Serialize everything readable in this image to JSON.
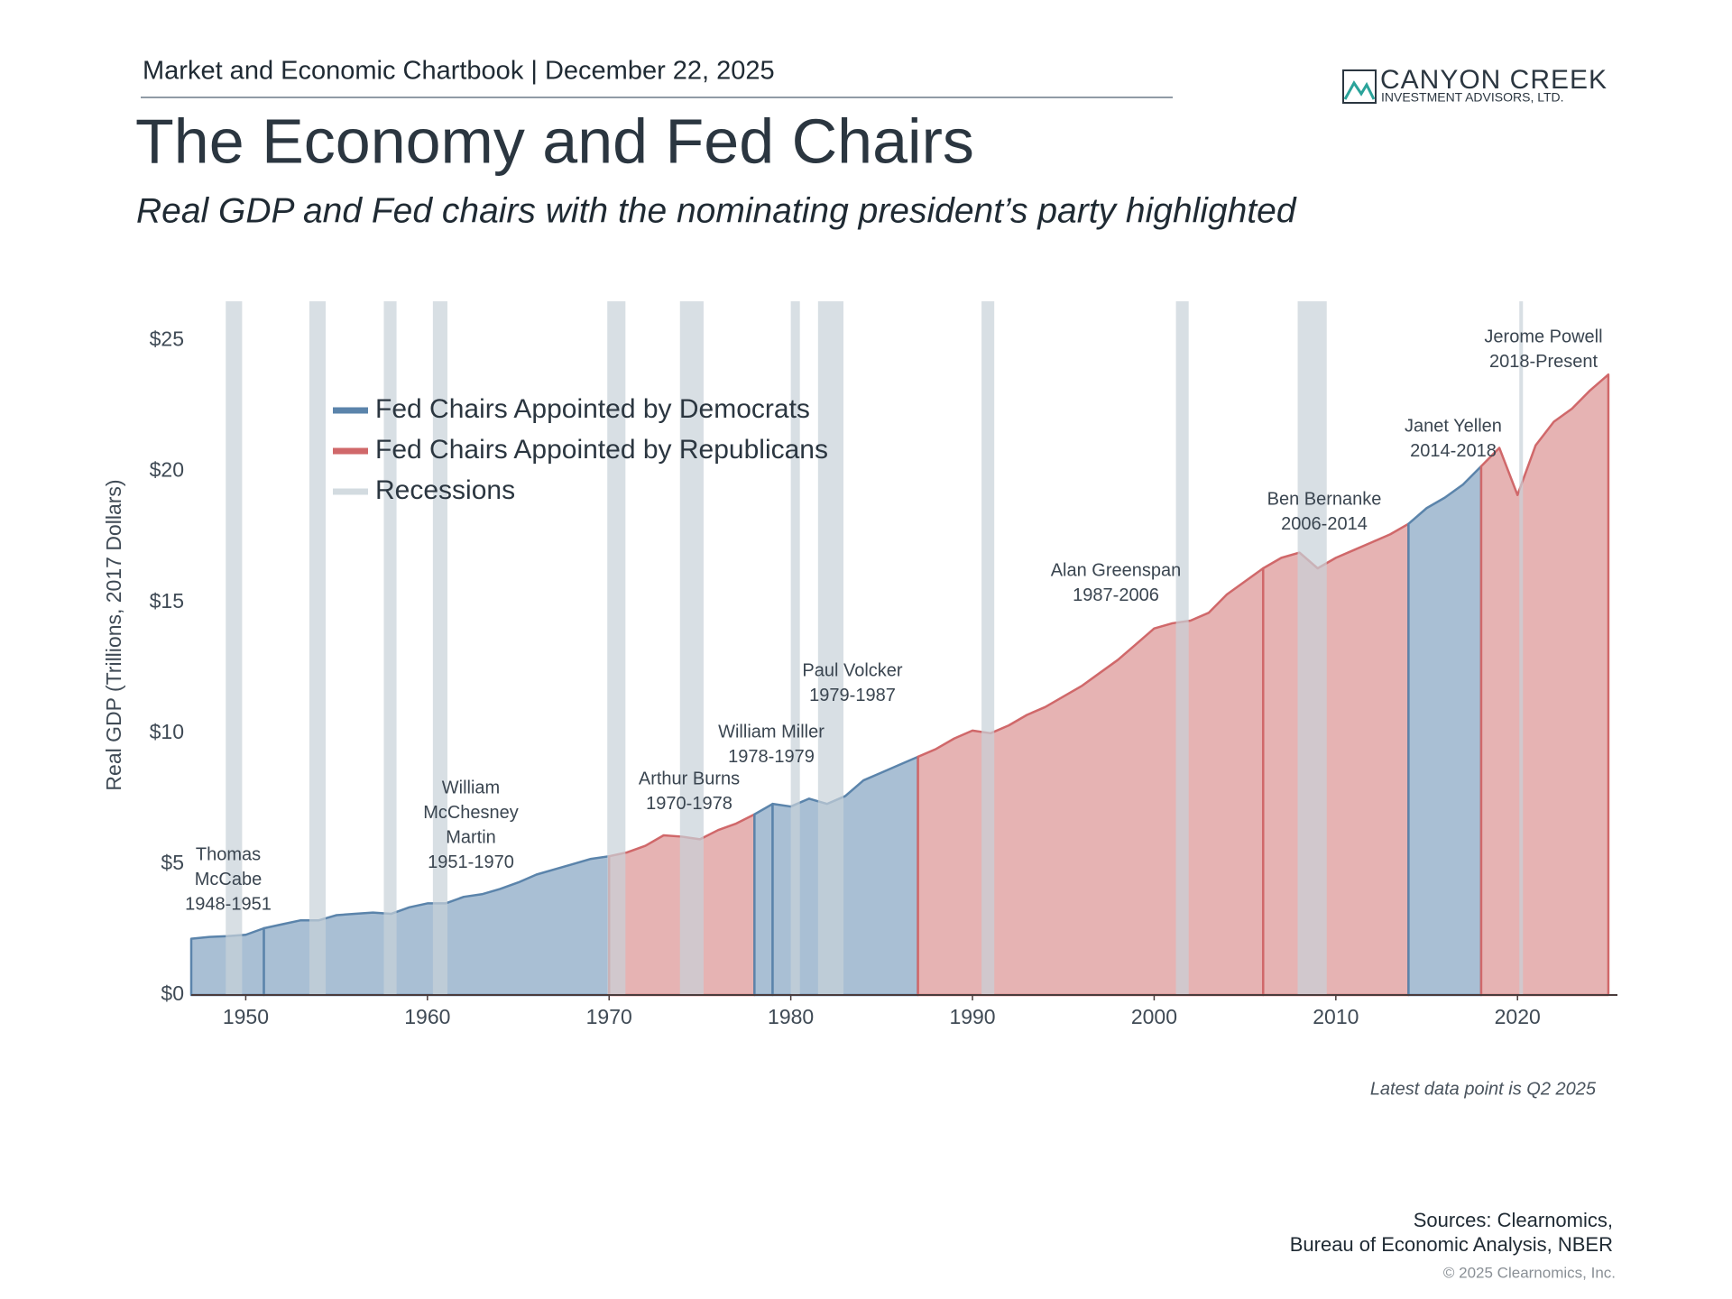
{
  "header": {
    "kicker": "Market and Economic Chartbook | December 22, 2025",
    "title": "The Economy and Fed Chairs",
    "subtitle": "Real GDP and Fed chairs with the nominating president’s party highlighted"
  },
  "logo": {
    "name": "CANYON CREEK",
    "tagline": "INVESTMENT ADVISORS, LTD."
  },
  "chart_data": {
    "type": "area",
    "ylabel": "Real GDP (Trillions, 2017 Dollars)",
    "xlim": [
      1947,
      2025.5
    ],
    "ylim": [
      0,
      26.5
    ],
    "xticks": [
      1950,
      1960,
      1970,
      1980,
      1990,
      2000,
      2010,
      2020
    ],
    "yticks": [
      {
        "value": 0,
        "label": "$0"
      },
      {
        "value": 5,
        "label": "$5"
      },
      {
        "value": 10,
        "label": "$10"
      },
      {
        "value": 15,
        "label": "$15"
      },
      {
        "value": 20,
        "label": "$20"
      },
      {
        "value": 25,
        "label": "$25"
      }
    ],
    "legend": [
      {
        "label": "Fed Chairs Appointed by Democrats",
        "color": "#5b84ab"
      },
      {
        "label": "Fed Chairs Appointed by Republicans",
        "color": "#d0686a"
      },
      {
        "label": "Recessions",
        "color": "#d3dbe0"
      }
    ],
    "recessions": {
      "color": "#c8d2d9",
      "periods": [
        [
          1948.9,
          1949.8
        ],
        [
          1953.5,
          1954.4
        ],
        [
          1957.6,
          1958.3
        ],
        [
          1960.3,
          1961.1
        ],
        [
          1969.9,
          1970.9
        ],
        [
          1973.9,
          1975.2
        ],
        [
          1980.0,
          1980.5
        ],
        [
          1981.5,
          1982.9
        ],
        [
          1990.5,
          1991.2
        ],
        [
          2001.2,
          2001.9
        ],
        [
          2007.9,
          2009.5
        ],
        [
          2020.1,
          2020.3
        ]
      ]
    },
    "series": [
      {
        "label": [
          "Thomas",
          "McCabe",
          "1948-1951"
        ],
        "color": "#5b84ab",
        "fill": "#a9bfd4",
        "x": [
          1947,
          1948,
          1949,
          1950,
          1951
        ],
        "values": [
          2.15,
          2.22,
          2.25,
          2.3,
          2.55
        ]
      },
      {
        "label": [
          "William",
          "McChesney",
          "Martin",
          "1951-1970"
        ],
        "color": "#5b84ab",
        "fill": "#a9bfd4",
        "x": [
          1951,
          1952,
          1953,
          1954,
          1955,
          1956,
          1957,
          1958,
          1959,
          1960,
          1961,
          1962,
          1963,
          1964,
          1965,
          1966,
          1967,
          1968,
          1969,
          1970
        ],
        "values": [
          2.55,
          2.7,
          2.85,
          2.85,
          3.05,
          3.1,
          3.15,
          3.1,
          3.35,
          3.5,
          3.5,
          3.75,
          3.85,
          4.05,
          4.3,
          4.6,
          4.8,
          5.0,
          5.2,
          5.3
        ]
      },
      {
        "label": [
          "Arthur Burns",
          "1970-1978"
        ],
        "color": "#d0686a",
        "fill": "#e6b3b3",
        "x": [
          1970,
          1971,
          1972,
          1973,
          1974,
          1975,
          1976,
          1977,
          1978
        ],
        "values": [
          5.3,
          5.45,
          5.7,
          6.1,
          6.05,
          5.95,
          6.3,
          6.55,
          6.9
        ]
      },
      {
        "label": [
          "William Miller",
          "1978-1979"
        ],
        "color": "#5b84ab",
        "fill": "#a9bfd4",
        "x": [
          1978,
          1979
        ],
        "values": [
          6.9,
          7.3
        ]
      },
      {
        "label": [
          "Paul Volcker",
          "1979-1987"
        ],
        "color": "#5b84ab",
        "fill": "#a9bfd4",
        "x": [
          1979,
          1980,
          1981,
          1982,
          1983,
          1984,
          1985,
          1986,
          1987
        ],
        "values": [
          7.3,
          7.2,
          7.5,
          7.3,
          7.6,
          8.2,
          8.5,
          8.8,
          9.1
        ]
      },
      {
        "label": [
          "Alan Greenspan",
          "1987-2006"
        ],
        "color": "#d0686a",
        "fill": "#e6b3b3",
        "x": [
          1987,
          1988,
          1989,
          1990,
          1991,
          1992,
          1993,
          1994,
          1995,
          1996,
          1997,
          1998,
          1999,
          2000,
          2001,
          2002,
          2003,
          2004,
          2005,
          2006
        ],
        "values": [
          9.1,
          9.4,
          9.8,
          10.1,
          10.0,
          10.3,
          10.7,
          11.0,
          11.4,
          11.8,
          12.3,
          12.8,
          13.4,
          14.0,
          14.2,
          14.3,
          14.6,
          15.3,
          15.8,
          16.3
        ]
      },
      {
        "label": [
          "Ben Bernanke",
          "2006-2014"
        ],
        "color": "#d0686a",
        "fill": "#e6b3b3",
        "x": [
          2006,
          2007,
          2008,
          2009,
          2010,
          2011,
          2012,
          2013,
          2014
        ],
        "values": [
          16.3,
          16.7,
          16.9,
          16.3,
          16.7,
          17.0,
          17.3,
          17.6,
          18.0
        ]
      },
      {
        "label": [
          "Janet Yellen",
          "2014-2018"
        ],
        "color": "#5b84ab",
        "fill": "#a9bfd4",
        "x": [
          2014,
          2015,
          2016,
          2017,
          2018
        ],
        "values": [
          18.0,
          18.6,
          19.0,
          19.5,
          20.2
        ]
      },
      {
        "label": [
          "Jerome Powell",
          "2018-Present"
        ],
        "color": "#d0686a",
        "fill": "#e6b3b3",
        "x": [
          2018,
          2019,
          2020,
          2021,
          2022,
          2023,
          2024,
          2025
        ],
        "values": [
          20.2,
          20.9,
          19.1,
          21.0,
          21.9,
          22.4,
          23.1,
          23.7
        ]
      }
    ],
    "note": "Latest data point is Q2 2025"
  },
  "footer": {
    "sources": [
      "Sources: Clearnomics,",
      "Bureau of Economic Analysis, NBER"
    ],
    "copyright": "© 2025 Clearnomics, Inc."
  }
}
